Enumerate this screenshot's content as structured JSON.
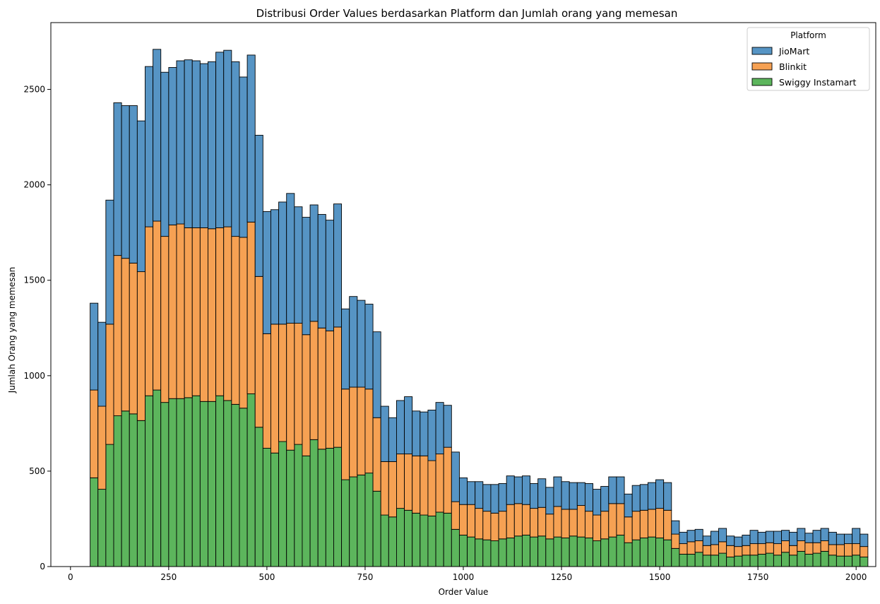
{
  "chart_data": {
    "type": "bar",
    "subtype": "stacked-histogram",
    "title": "Distribusi Order Values berdasarkan Platform dan Jumlah orang yang memesan",
    "xlabel": "Order Value",
    "ylabel": "Jumlah Orang yang memesan",
    "xlim": [
      -50,
      2050
    ],
    "ylim": [
      0,
      2850
    ],
    "xticks": [
      0,
      250,
      500,
      750,
      1000,
      1250,
      1500,
      1750,
      2000
    ],
    "yticks": [
      0,
      500,
      1000,
      1500,
      2000,
      2500
    ],
    "bin_start": 50,
    "bin_width": 20,
    "legend": {
      "title": "Platform",
      "position": "upper-right",
      "entries": [
        "JioMart",
        "Blinkit",
        "Swiggy Instamart"
      ]
    },
    "colors": {
      "JioMart": "#5694c4",
      "Blinkit": "#f6a153",
      "Swiggy Instamart": "#5cb55c",
      "edge": "#000000"
    },
    "series": [
      {
        "name": "Swiggy Instamart",
        "values": [
          465,
          405,
          640,
          790,
          815,
          800,
          765,
          895,
          925,
          860,
          880,
          880,
          885,
          895,
          865,
          865,
          895,
          870,
          850,
          830,
          905,
          730,
          620,
          595,
          655,
          610,
          640,
          580,
          665,
          615,
          620,
          625,
          455,
          470,
          480,
          490,
          395,
          270,
          260,
          305,
          295,
          280,
          270,
          265,
          285,
          280,
          195,
          165,
          155,
          145,
          140,
          135,
          145,
          150,
          160,
          165,
          155,
          160,
          145,
          155,
          150,
          160,
          155,
          150,
          135,
          145,
          155,
          165,
          125,
          140,
          150,
          155,
          150,
          140,
          95,
          65,
          65,
          75,
          60,
          60,
          70,
          50,
          55,
          60,
          60,
          65,
          70,
          60,
          75,
          60,
          80,
          65,
          70,
          80,
          60,
          55,
          55,
          60,
          50
        ],
        "totals_note": "stack order bottom to top: Swiggy Instamart, Blinkit, JioMart"
      },
      {
        "name": "Blinkit",
        "values": [
          460,
          435,
          630,
          840,
          800,
          790,
          780,
          885,
          885,
          870,
          910,
          915,
          890,
          880,
          910,
          905,
          880,
          910,
          880,
          895,
          900,
          790,
          600,
          675,
          615,
          665,
          635,
          635,
          620,
          635,
          615,
          630,
          475,
          470,
          460,
          440,
          385,
          280,
          290,
          285,
          295,
          300,
          310,
          290,
          305,
          345,
          145,
          160,
          170,
          160,
          150,
          145,
          145,
          175,
          170,
          160,
          150,
          150,
          130,
          160,
          150,
          140,
          165,
          140,
          135,
          145,
          175,
          165,
          135,
          150,
          145,
          145,
          155,
          155,
          75,
          55,
          65,
          60,
          50,
          55,
          60,
          60,
          50,
          50,
          60,
          55,
          55,
          60,
          60,
          50,
          55,
          60,
          55,
          55,
          55,
          60,
          65,
          60,
          55
        ]
      },
      {
        "name": "JioMart",
        "values": [
          455,
          440,
          650,
          800,
          800,
          825,
          790,
          840,
          900,
          860,
          825,
          855,
          880,
          875,
          860,
          875,
          920,
          925,
          915,
          840,
          875,
          740,
          640,
          600,
          640,
          680,
          610,
          615,
          610,
          595,
          580,
          645,
          420,
          475,
          455,
          445,
          450,
          290,
          230,
          280,
          300,
          235,
          230,
          265,
          270,
          220,
          260,
          140,
          120,
          140,
          140,
          150,
          145,
          150,
          140,
          150,
          130,
          150,
          140,
          155,
          145,
          140,
          120,
          145,
          135,
          130,
          140,
          140,
          120,
          135,
          135,
          140,
          150,
          145,
          70,
          60,
          60,
          60,
          50,
          70,
          70,
          50,
          50,
          55,
          70,
          60,
          60,
          65,
          55,
          70,
          65,
          50,
          65,
          65,
          65,
          55,
          50,
          80,
          65
        ]
      }
    ]
  }
}
